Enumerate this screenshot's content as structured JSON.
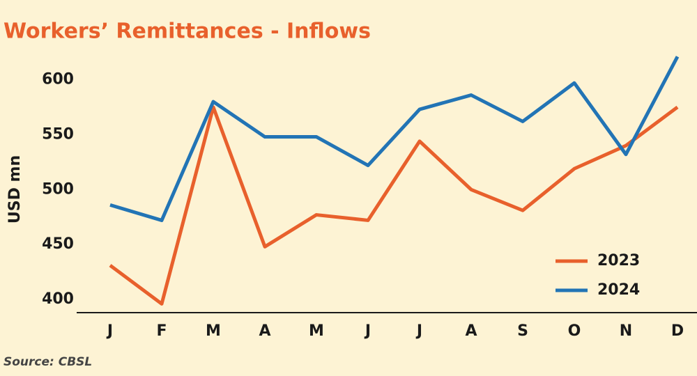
{
  "chart_data": {
    "type": "line",
    "title": "Workers’ Remittances - Inflows",
    "y_label": "USD mn",
    "source": "Source: CBSL",
    "categories": [
      "J",
      "F",
      "M",
      "A",
      "M",
      "J",
      "J",
      "A",
      "S",
      "O",
      "N",
      "D"
    ],
    "series": [
      {
        "name": "2023",
        "color": "#e8602c",
        "values": [
          431,
          396,
          575,
          448,
          477,
          472,
          544,
          500,
          481,
          519,
          540,
          575
        ]
      },
      {
        "name": "2024",
        "color": "#2274b5",
        "values": [
          486,
          472,
          580,
          548,
          548,
          522,
          573,
          586,
          562,
          597,
          532,
          621
        ]
      }
    ],
    "ylim": [
      388,
      625
    ],
    "yticks": [
      400,
      450,
      500,
      550,
      600
    ],
    "grid": false,
    "legend": "lower right"
  }
}
